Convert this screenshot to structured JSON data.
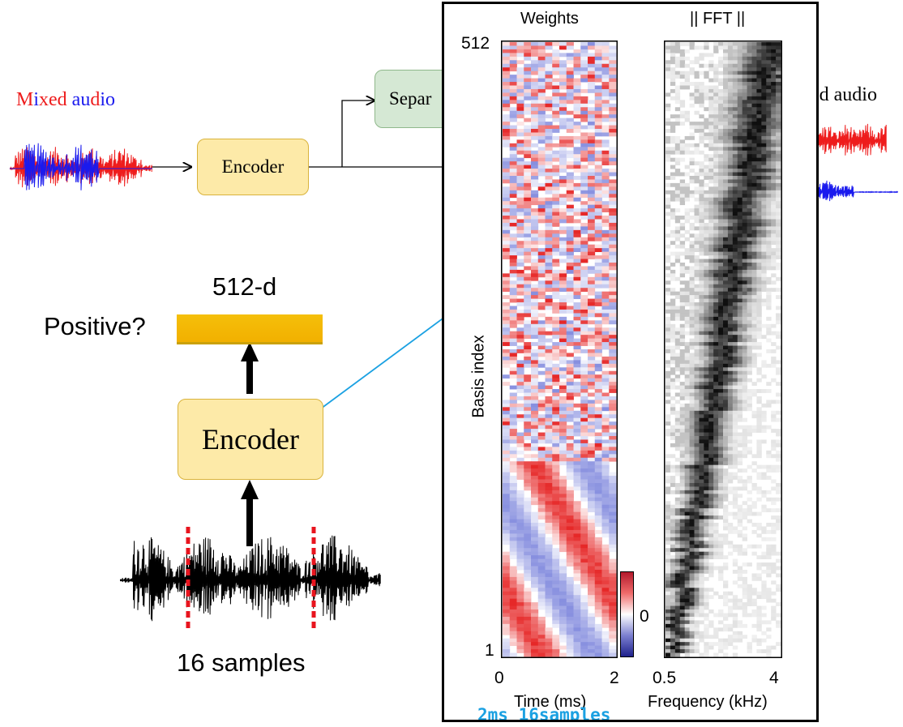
{
  "top_diagram": {
    "input_label": [
      {
        "text": "M",
        "color": "red"
      },
      {
        "text": "i",
        "color": "blue"
      },
      {
        "text": "xed",
        "color": "red"
      },
      {
        "text": " ",
        "color": "red"
      },
      {
        "text": "au",
        "color": "blue"
      },
      {
        "text": "d",
        "color": "red"
      },
      {
        "text": "io",
        "color": "blue"
      }
    ],
    "encoder_label": "Encoder",
    "separator_label": "Separ",
    "output_label": "ed audio"
  },
  "bottom_diagram": {
    "dimension_label": "512-d",
    "positive_label": "Positive?",
    "encoder_label": "Encoder",
    "samples_label": "16 samples"
  },
  "figure": {
    "weights_title": "Weights",
    "fft_title": "|| FFT ||",
    "ylabel": "Basis index",
    "y_tick_top": "512",
    "y_tick_bottom": "1",
    "colorbar_zero": "0",
    "weights_x_ticks": [
      "0",
      "2"
    ],
    "weights_xlabel": "Time (ms)",
    "fft_x_ticks": [
      "0.5",
      "4"
    ],
    "fft_xlabel": "Frequency (kHz)",
    "annotation": "2ms 16samples",
    "annotation_color": "#1ba1e2"
  },
  "colors": {
    "waveform_red": "#ee1c1c",
    "waveform_blue": "#1a1aee",
    "encoder_fill": "#fdeaa8",
    "separator_fill": "#d5e8d4",
    "vector_fill": "#f5bf0a",
    "dashed_marker": "#e8141e"
  }
}
